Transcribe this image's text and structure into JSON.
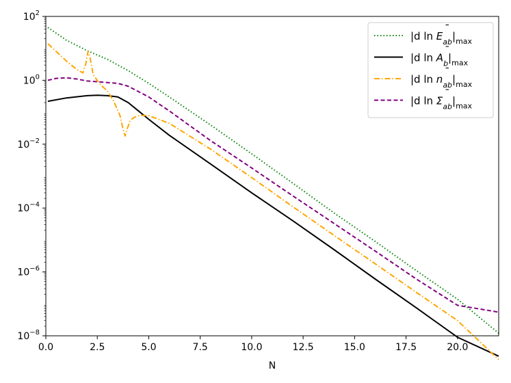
{
  "chart_data": {
    "type": "line",
    "xlabel": "N",
    "ylabel": "",
    "title": "",
    "xlim": [
      0,
      22
    ],
    "ylim": [
      1e-08,
      100
    ],
    "yscale": "log",
    "xticks": [
      0,
      2.5,
      5,
      7.5,
      10,
      12.5,
      15,
      17.5,
      20
    ],
    "xtick_labels": [
      "0.0",
      "2.5",
      "5.0",
      "7.5",
      "10.0",
      "12.5",
      "15.0",
      "17.5",
      "20.0"
    ],
    "yticks": [
      {
        "base": "10",
        "exp": "2",
        "value": 100
      },
      {
        "base": "10",
        "exp": "0",
        "value": 1
      },
      {
        "base": "10",
        "exp": "−2",
        "value": 0.01
      },
      {
        "base": "10",
        "exp": "−4",
        "value": 0.0001
      },
      {
        "base": "10",
        "exp": "−6",
        "value": 1e-06
      },
      {
        "base": "10",
        "exp": "−8",
        "value": 1e-08
      }
    ],
    "grid": false,
    "legend_position": "top-right",
    "series": [
      {
        "name": "|d ln Ē_ab|max",
        "color": "#008000",
        "dash": "dotted",
        "x": [
          0.1,
          1,
          2,
          3,
          4,
          5,
          6,
          8,
          10,
          12,
          14,
          16,
          18,
          20,
          22
        ],
        "y": [
          45,
          18,
          8.5,
          4.5,
          2.0,
          0.8,
          0.3,
          0.04,
          0.005,
          0.0006,
          7e-05,
          9e-06,
          1.1e-06,
          1.4e-07,
          1.2e-08
        ]
      },
      {
        "name": "|d ln Ā_b|max",
        "color": "#000000",
        "dash": "solid",
        "x": [
          0.1,
          1,
          2,
          2.5,
          3,
          3.5,
          4,
          4.5,
          5,
          6,
          8,
          10,
          12,
          14,
          16,
          18,
          20,
          22
        ],
        "y": [
          0.22,
          0.28,
          0.33,
          0.34,
          0.33,
          0.3,
          0.2,
          0.11,
          0.06,
          0.019,
          0.0024,
          0.0003,
          4e-05,
          5e-06,
          6e-07,
          7.5e-08,
          9e-09,
          2.3e-09
        ]
      },
      {
        "name": "|d ln n̄_ab|max",
        "color": "#FFA500",
        "dash": "dashdot",
        "x": [
          0.1,
          0.5,
          1,
          1.5,
          1.8,
          1.95,
          2.05,
          2.15,
          2.3,
          2.6,
          3.0,
          3.3,
          3.6,
          3.75,
          3.85,
          3.95,
          4.1,
          4.3,
          4.6,
          5.0,
          6,
          8,
          10,
          12,
          14,
          16,
          18,
          20,
          22
        ],
        "y": [
          14,
          8,
          4,
          2.2,
          1.7,
          3.5,
          8,
          5,
          1.5,
          0.8,
          0.45,
          0.22,
          0.08,
          0.03,
          0.018,
          0.03,
          0.055,
          0.07,
          0.08,
          0.078,
          0.045,
          0.007,
          0.0009,
          0.00011,
          1.4e-05,
          1.8e-06,
          2.3e-07,
          3e-08,
          1.8e-09
        ]
      },
      {
        "name": "|d ln Σ̄_ab|max",
        "color": "#800080",
        "dash": "dashed",
        "x": [
          0.1,
          0.5,
          1,
          1.5,
          2,
          3,
          3.5,
          4,
          5,
          6,
          8,
          10,
          12,
          14,
          16,
          18,
          20,
          22
        ],
        "y": [
          1.0,
          1.15,
          1.2,
          1.1,
          0.95,
          0.85,
          0.8,
          0.65,
          0.3,
          0.11,
          0.013,
          0.0018,
          0.00024,
          3.3e-05,
          4.5e-06,
          6e-07,
          9e-08,
          5.5e-08
        ]
      }
    ],
    "legend": [
      {
        "pre": "|d ln ",
        "main": "E",
        "bar": "¯",
        "sub": "ab",
        "tail": "max"
      },
      {
        "pre": "|d ln ",
        "main": "A",
        "bar": "¯",
        "sub": "b",
        "tail": "max"
      },
      {
        "pre": "|d ln ",
        "main": "n",
        "bar": "¯",
        "sub": "ab",
        "tail": "max"
      },
      {
        "pre": "|d ln ",
        "main": "Σ",
        "bar": "¯",
        "sub": "ab",
        "tail": "max"
      }
    ]
  }
}
